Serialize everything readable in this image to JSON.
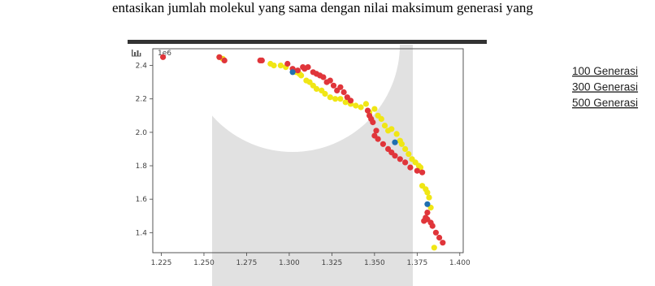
{
  "document": {
    "text_line": "entasikan jumlah molekul yang sama dengan nilai maksimum generasi yang"
  },
  "toolbar": {
    "icon": "bar-chart-icon"
  },
  "colors": {
    "series_100": "#e0353a",
    "series_300": "#1f6fb0",
    "series_500": "#f0e615",
    "watermark_gray": "#d4d4d4"
  },
  "chart_data": {
    "type": "scatter",
    "title": "",
    "xlabel": "",
    "ylabel": "",
    "y_offset_label": "1e6",
    "xlim": [
      1.22,
      1.402
    ],
    "ylim": [
      1.28,
      2.5
    ],
    "xticks": [
      "1.225",
      "1.250",
      "1.275",
      "1.300",
      "1.325",
      "1.350",
      "1.375",
      "1.400"
    ],
    "yticks": [
      "1.4",
      "1.6",
      "1.8",
      "2.0",
      "2.2",
      "2.4"
    ],
    "grid": false,
    "legend_position": "outside-right",
    "series": [
      {
        "name": "100 Generasi",
        "color": "#e0353a",
        "x": [
          1.226,
          1.259,
          1.262,
          1.283,
          1.284,
          1.299,
          1.302,
          1.305,
          1.308,
          1.309,
          1.311,
          1.314,
          1.316,
          1.318,
          1.32,
          1.322,
          1.324,
          1.326,
          1.328,
          1.33,
          1.332,
          1.334,
          1.336,
          1.346,
          1.347,
          1.348,
          1.349,
          1.351,
          1.35,
          1.352,
          1.355,
          1.358,
          1.36,
          1.362,
          1.365,
          1.368,
          1.371,
          1.375,
          1.378,
          1.381,
          1.383,
          1.384,
          1.386,
          1.388,
          1.39,
          1.381,
          1.38,
          1.379
        ],
        "y": [
          2.45,
          2.45,
          2.43,
          2.43,
          2.43,
          2.41,
          2.38,
          2.37,
          2.39,
          2.38,
          2.39,
          2.36,
          2.35,
          2.34,
          2.33,
          2.3,
          2.31,
          2.28,
          2.25,
          2.27,
          2.24,
          2.21,
          2.19,
          2.13,
          2.1,
          2.08,
          2.06,
          2.01,
          1.98,
          1.96,
          1.93,
          1.9,
          1.88,
          1.86,
          1.84,
          1.82,
          1.79,
          1.77,
          1.76,
          1.48,
          1.46,
          1.44,
          1.4,
          1.37,
          1.34,
          1.52,
          1.49,
          1.47
        ]
      },
      {
        "name": "300 Generasi",
        "color": "#1f6fb0",
        "x": [
          1.302,
          1.362,
          1.381
        ],
        "y": [
          2.36,
          1.94,
          1.57
        ]
      },
      {
        "name": "500 Generasi",
        "color": "#f0e615",
        "x": [
          1.259,
          1.261,
          1.289,
          1.291,
          1.295,
          1.298,
          1.304,
          1.306,
          1.307,
          1.31,
          1.312,
          1.314,
          1.316,
          1.319,
          1.321,
          1.324,
          1.327,
          1.33,
          1.333,
          1.336,
          1.339,
          1.342,
          1.345,
          1.347,
          1.35,
          1.352,
          1.354,
          1.356,
          1.358,
          1.36,
          1.363,
          1.365,
          1.366,
          1.368,
          1.37,
          1.372,
          1.374,
          1.376,
          1.377,
          1.378,
          1.38,
          1.381,
          1.382,
          1.383,
          1.385
        ],
        "y": [
          2.45,
          2.44,
          2.41,
          2.4,
          2.4,
          2.39,
          2.36,
          2.35,
          2.34,
          2.31,
          2.3,
          2.28,
          2.26,
          2.25,
          2.23,
          2.21,
          2.2,
          2.2,
          2.18,
          2.17,
          2.16,
          2.15,
          2.17,
          2.12,
          2.14,
          2.1,
          2.08,
          2.04,
          2.01,
          2.02,
          1.99,
          1.95,
          1.93,
          1.9,
          1.87,
          1.84,
          1.82,
          1.8,
          1.79,
          1.68,
          1.66,
          1.64,
          1.61,
          1.55,
          1.31
        ]
      }
    ]
  }
}
